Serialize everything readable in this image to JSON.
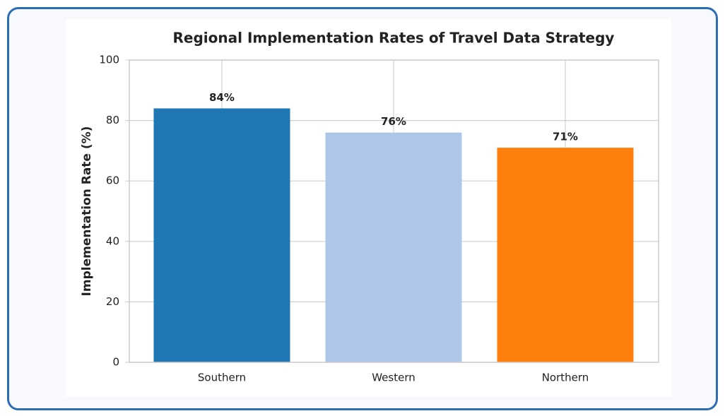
{
  "chart_data": {
    "type": "bar",
    "title": "Regional Implementation Rates of Travel Data Strategy",
    "y_label": "Implementation Rate (%)",
    "categories": [
      "Southern",
      "Western",
      "Northern"
    ],
    "values": [
      84,
      76,
      71
    ],
    "value_labels": [
      "84%",
      "76%",
      "71%"
    ],
    "colors": [
      "#1f77b4",
      "#aec7e8",
      "#ff7f0e"
    ],
    "ylim": [
      0,
      100
    ],
    "yticks": [
      0,
      20,
      40,
      60,
      80,
      100
    ],
    "grid": true
  }
}
